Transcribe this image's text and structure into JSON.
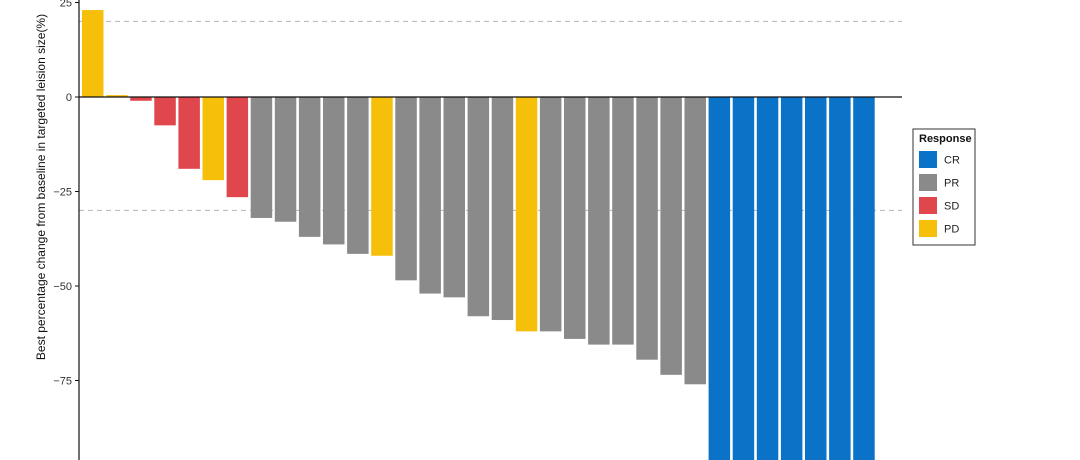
{
  "chart_data": {
    "type": "bar",
    "ylabel": "Best percentage change from baseline in targeted leision size(%)",
    "ylim": [
      -95,
      25.5
    ],
    "yticks": [
      25,
      0,
      -25,
      -50,
      -75
    ],
    "ytick_labels": [
      "25",
      "0",
      "−25",
      "−50",
      "−75"
    ],
    "reference_lines": [
      20,
      -30
    ],
    "grid": false,
    "legend_placement": "right",
    "legend": {
      "title": "Response",
      "entries": [
        {
          "label": "CR",
          "color": "#0a73c8"
        },
        {
          "label": "PR",
          "color": "#8a8a8a"
        },
        {
          "label": "SD",
          "color": "#e0474c"
        },
        {
          "label": "PD",
          "color": "#f5bf0a"
        }
      ]
    },
    "values": [
      23,
      0.5,
      -1,
      -7.5,
      -19,
      -22,
      -26.5,
      -32,
      -33,
      -37,
      -39,
      -41.5,
      -42,
      -48.5,
      -52,
      -53,
      -58,
      -59,
      -62,
      -62,
      -64,
      -65.5,
      -65.5,
      -69.5,
      -73.5,
      -76,
      -100,
      -100,
      -100,
      -100,
      -100,
      -100,
      -100
    ],
    "responses": [
      "PD",
      "PD",
      "SD",
      "SD",
      "SD",
      "PD",
      "SD",
      "PR",
      "PR",
      "PR",
      "PR",
      "PR",
      "PD",
      "PR",
      "PR",
      "PR",
      "PR",
      "PR",
      "PD",
      "PR",
      "PR",
      "PR",
      "PR",
      "PR",
      "PR",
      "PR",
      "CR",
      "CR",
      "CR",
      "CR",
      "CR",
      "CR",
      "CR"
    ]
  }
}
